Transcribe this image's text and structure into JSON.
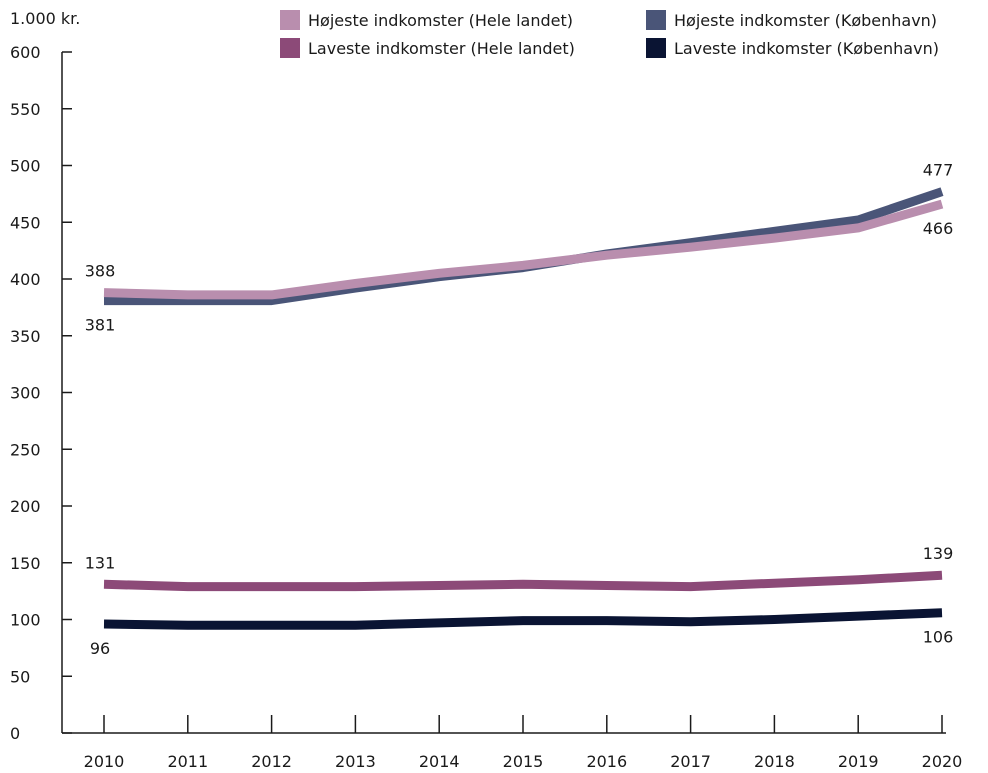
{
  "chart_data": {
    "type": "line",
    "unit_label": "1.000 kr.",
    "x": [
      2010,
      2011,
      2012,
      2013,
      2014,
      2015,
      2016,
      2017,
      2018,
      2019,
      2020
    ],
    "x_tick_labels": [
      "2010",
      "2011",
      "2012",
      "2013",
      "2014",
      "2015",
      "2016",
      "2017",
      "2018",
      "2019",
      "2020"
    ],
    "ylim": [
      0,
      600
    ],
    "y_ticks": [
      0,
      50,
      100,
      150,
      200,
      250,
      300,
      350,
      400,
      450,
      500,
      550,
      600
    ],
    "y_tick_labels": [
      "0",
      "50",
      "100",
      "150",
      "200",
      "250",
      "300",
      "350",
      "400",
      "450",
      "500",
      "550",
      "600"
    ],
    "grid": false,
    "legend_position": "top-right",
    "series": [
      {
        "name": "Højeste indkomster (Hele landet)",
        "color": "#b98eae",
        "values": [
          388,
          386,
          386,
          396,
          405,
          412,
          421,
          428,
          436,
          445,
          466
        ],
        "labels": [
          {
            "index": 0,
            "text": "388",
            "pos": "above"
          },
          {
            "index": 10,
            "text": "466",
            "pos": "below"
          }
        ]
      },
      {
        "name": "Højeste indkomster (København)",
        "color": "#4a5578",
        "values": [
          381,
          381,
          381,
          392,
          402,
          410,
          422,
          432,
          442,
          452,
          477
        ],
        "labels": [
          {
            "index": 0,
            "text": "381",
            "pos": "below"
          },
          {
            "index": 10,
            "text": "477",
            "pos": "above"
          }
        ]
      },
      {
        "name": "Laveste indkomster (Hele landet)",
        "color": "#8c4a78",
        "values": [
          131,
          129,
          129,
          129,
          130,
          131,
          130,
          129,
          132,
          135,
          139
        ],
        "labels": [
          {
            "index": 0,
            "text": "131",
            "pos": "above"
          },
          {
            "index": 10,
            "text": "139",
            "pos": "above"
          }
        ]
      },
      {
        "name": "Laveste indkomster (København)",
        "color": "#0a1433",
        "values": [
          96,
          95,
          95,
          95,
          97,
          99,
          99,
          98,
          100,
          103,
          106
        ],
        "labels": [
          {
            "index": 0,
            "text": "96",
            "pos": "below"
          },
          {
            "index": 10,
            "text": "106",
            "pos": "below"
          }
        ]
      }
    ]
  }
}
